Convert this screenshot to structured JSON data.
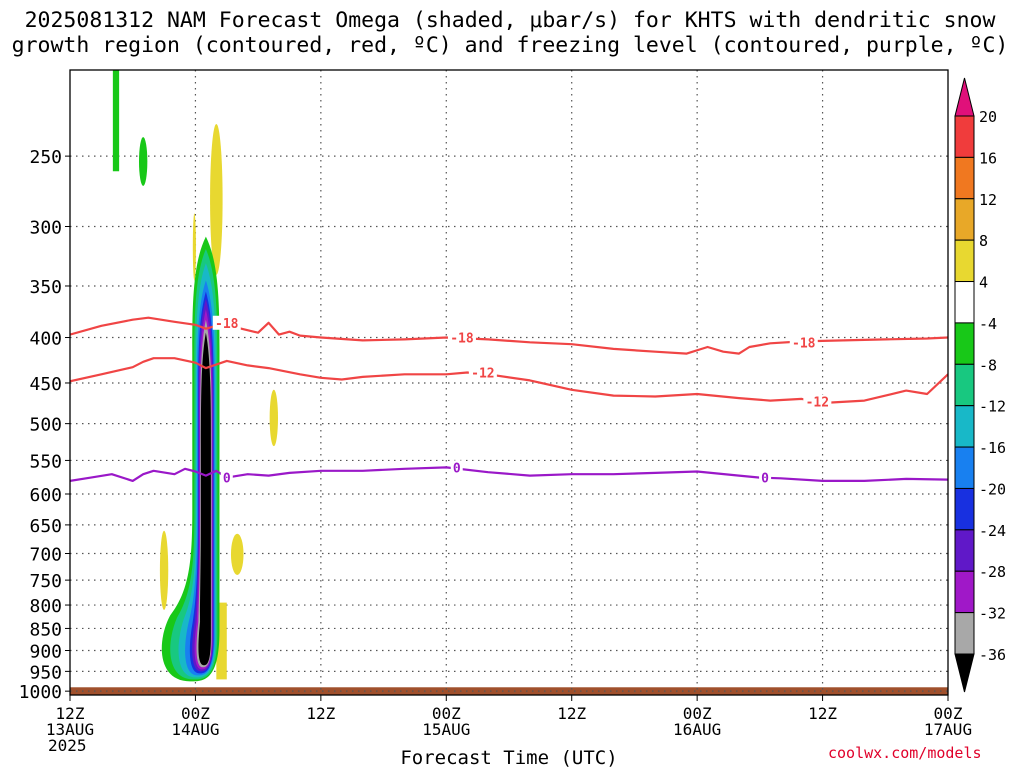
{
  "header": {
    "title_line1": "2025081312 NAM Forecast Omega (shaded, μbar/s) for KHTS with dendritic snow",
    "title_line2": "growth region (contoured, red, ºC) and freezing level (contoured, purple, ºC)"
  },
  "watermark": "coolwx.com/models",
  "colors": {
    "red_contour": "#f04545",
    "purple_contour": "#9a18c8",
    "ground": "#a0502c",
    "grid": "#555555"
  },
  "chart_data": {
    "type": "heatmap",
    "title": "2025081312 NAM Forecast Omega (shaded, μbar/s) for KHTS with dendritic snow growth region (contoured, red, ºC) and freezing level (contoured, purple, ºC)",
    "xlabel": "Forecast Time (UTC)",
    "ylabel": "",
    "x_range_hours": [
      0,
      84
    ],
    "y_range_mb": [
      1010,
      200
    ],
    "y_scale": "log",
    "grid": true,
    "x_ticks": [
      {
        "h": 0,
        "line1": "12Z",
        "line2": "13AUG",
        "line3": "2025"
      },
      {
        "h": 12,
        "line1": "00Z",
        "line2": "14AUG"
      },
      {
        "h": 24,
        "line1": "12Z"
      },
      {
        "h": 36,
        "line1": "00Z",
        "line2": "15AUG"
      },
      {
        "h": 48,
        "line1": "12Z"
      },
      {
        "h": 60,
        "line1": "00Z",
        "line2": "16AUG"
      },
      {
        "h": 72,
        "line1": "12Z"
      },
      {
        "h": 84,
        "line1": "00Z",
        "line2": "17AUG"
      }
    ],
    "y_ticks": [
      250,
      300,
      350,
      400,
      450,
      500,
      550,
      600,
      650,
      700,
      750,
      800,
      850,
      900,
      950,
      1000
    ],
    "colorbar": {
      "labels": [
        "20",
        "16",
        "12",
        "8",
        "4",
        "-4",
        "-8",
        "-12",
        "-16",
        "-20",
        "-24",
        "-28",
        "-32",
        "-36"
      ],
      "bins": [
        {
          "min": 20,
          "max": null,
          "color": "#e0107a"
        },
        {
          "min": 16,
          "max": 20,
          "color": "#f03c3c"
        },
        {
          "min": 12,
          "max": 16,
          "color": "#f07820"
        },
        {
          "min": 8,
          "max": 12,
          "color": "#e8a828"
        },
        {
          "min": 4,
          "max": 8,
          "color": "#e8d830"
        },
        {
          "min": -4,
          "max": 4,
          "color": "#ffffff"
        },
        {
          "min": -8,
          "max": -4,
          "color": "#18c818"
        },
        {
          "min": -12,
          "max": -8,
          "color": "#18c880"
        },
        {
          "min": -16,
          "max": -12,
          "color": "#18b8c8"
        },
        {
          "min": -20,
          "max": -16,
          "color": "#1880f0"
        },
        {
          "min": -24,
          "max": -20,
          "color": "#1830e0"
        },
        {
          "min": -28,
          "max": -24,
          "color": "#6018c8"
        },
        {
          "min": -32,
          "max": -28,
          "color": "#a018c8"
        },
        {
          "min": -36,
          "max": -32,
          "color": "#a8a8a8"
        },
        {
          "min": null,
          "max": -36,
          "color": "#000000"
        }
      ]
    },
    "omega_blobs": [
      {
        "value": 6,
        "h_center": 4.4,
        "h_halfwidth": 0.3,
        "p_top": 100,
        "p_bottom": 260,
        "shape": "rect",
        "color": "#18c818"
      },
      {
        "value": -6,
        "h_center": 7.0,
        "h_halfwidth": 0.4,
        "p_top": 238,
        "p_bottom": 270,
        "shape": "ellipse"
      },
      {
        "value": 6,
        "h_center": 14.0,
        "h_halfwidth": 0.6,
        "p_top": 230,
        "p_bottom": 340,
        "shape": "ellipse"
      },
      {
        "value": 6,
        "h_center": 11.9,
        "h_halfwidth": 0.15,
        "p_top": 290,
        "p_bottom": 345,
        "shape": "ellipse"
      },
      {
        "value": 6,
        "h_center": 19.5,
        "h_halfwidth": 0.4,
        "p_top": 458,
        "p_bottom": 530,
        "shape": "ellipse"
      },
      {
        "value": 6,
        "h_center": 9.0,
        "h_halfwidth": 0.4,
        "p_top": 660,
        "p_bottom": 810,
        "shape": "ellipse"
      },
      {
        "value": 6,
        "h_center": 16.0,
        "h_halfwidth": 0.6,
        "p_top": 665,
        "p_bottom": 740,
        "shape": "ellipse"
      },
      {
        "value": 6,
        "h_center": 14.5,
        "h_halfwidth": 0.5,
        "p_top": 795,
        "p_bottom": 970,
        "shape": "rect"
      }
    ],
    "omega_core": {
      "h_center": 13.0,
      "layers": [
        {
          "value": -6,
          "halfwidth": 1.3,
          "p_top": 308,
          "p_bottom": 975,
          "bulge_halfwidth": 3.2,
          "bulge_center": 11.5,
          "bulge_p": 900
        },
        {
          "value": -10,
          "halfwidth": 1.1,
          "p_top": 318,
          "p_bottom": 970,
          "bulge_halfwidth": 2.6,
          "bulge_center": 11.8,
          "bulge_p": 905
        },
        {
          "value": -14,
          "halfwidth": 0.95,
          "p_top": 330,
          "p_bottom": 965,
          "bulge_halfwidth": 1.9,
          "bulge_center": 12.0,
          "bulge_p": 910
        },
        {
          "value": -18,
          "halfwidth": 0.85,
          "p_top": 345,
          "p_bottom": 960,
          "bulge_halfwidth": 1.4,
          "bulge_center": 12.2,
          "bulge_p": 915
        },
        {
          "value": -22,
          "halfwidth": 0.75,
          "p_top": 355,
          "p_bottom": 955,
          "bulge_halfwidth": 1.1,
          "bulge_center": 12.4,
          "bulge_p": 915
        },
        {
          "value": -26,
          "halfwidth": 0.7,
          "p_top": 362,
          "p_bottom": 950,
          "bulge_halfwidth": 0.95,
          "bulge_center": 12.5,
          "bulge_p": 915
        },
        {
          "value": -30,
          "halfwidth": 0.62,
          "p_top": 372,
          "p_bottom": 945,
          "bulge_halfwidth": 0.8,
          "bulge_center": 12.6,
          "bulge_p": 915
        },
        {
          "value": -34,
          "halfwidth": 0.55,
          "p_top": 382,
          "p_bottom": 940,
          "bulge_halfwidth": 0.7,
          "bulge_center": 12.7,
          "bulge_p": 915
        },
        {
          "value": -40,
          "halfwidth": 0.48,
          "p_top": 395,
          "p_bottom": 935,
          "bulge_halfwidth": 0.6,
          "bulge_center": 12.8,
          "bulge_p": 915
        }
      ]
    },
    "series": [
      {
        "label": "-18",
        "contour": "red",
        "h": [
          0,
          3,
          6,
          7.5,
          10,
          12,
          13,
          14,
          16,
          18,
          19,
          20,
          21,
          22,
          24,
          28,
          32,
          36,
          40,
          44,
          48,
          52,
          56,
          59,
          61,
          62.5,
          64,
          65,
          67,
          70,
          74,
          78,
          82,
          84
        ],
        "p": [
          397,
          388,
          382,
          380,
          384,
          387,
          391,
          388,
          390,
          395,
          385,
          397,
          394,
          398,
          400,
          403,
          402,
          400,
          402,
          405,
          407,
          412,
          415,
          417,
          410,
          415,
          417,
          410,
          406,
          404,
          403,
          402,
          401,
          400
        ],
        "label_positions": [
          {
            "h": 15,
            "p": 385
          },
          {
            "h": 37.5,
            "p": 400
          },
          {
            "h": 70.2,
            "p": 405
          }
        ]
      },
      {
        "label": "-12",
        "contour": "red",
        "h": [
          0,
          3,
          6,
          7,
          8,
          10,
          12,
          13,
          15,
          17,
          19,
          22,
          24,
          26,
          28,
          32,
          36,
          38,
          40,
          44,
          48,
          52,
          56,
          60,
          64,
          67,
          70,
          72,
          76,
          80,
          82,
          84
        ],
        "p": [
          448,
          440,
          432,
          426,
          422,
          422,
          427,
          433,
          425,
          430,
          433,
          440,
          444,
          446,
          443,
          440,
          440,
          438,
          440,
          447,
          458,
          465,
          466,
          463,
          468,
          471,
          469,
          474,
          471,
          459,
          463,
          440
        ],
        "label_positions": [
          {
            "h": 39.5,
            "p": 438
          },
          {
            "h": 71.5,
            "p": 472
          }
        ]
      },
      {
        "label": "0",
        "contour": "purple",
        "h": [
          0,
          2,
          4,
          6,
          7,
          8,
          10,
          11,
          12,
          13,
          14,
          15,
          17,
          19,
          21,
          24,
          28,
          32,
          36,
          40,
          44,
          48,
          52,
          56,
          60,
          64,
          66,
          68,
          72,
          76,
          80,
          84
        ],
        "p": [
          580,
          575,
          570,
          580,
          570,
          565,
          570,
          562,
          566,
          572,
          565,
          575,
          570,
          572,
          568,
          565,
          565,
          562,
          560,
          567,
          572,
          570,
          570,
          568,
          566,
          572,
          575,
          576,
          580,
          580,
          577,
          578
        ],
        "label_positions": [
          {
            "h": 15,
            "p": 575
          },
          {
            "h": 37,
            "p": 560
          },
          {
            "h": 66.5,
            "p": 575
          }
        ]
      }
    ]
  }
}
